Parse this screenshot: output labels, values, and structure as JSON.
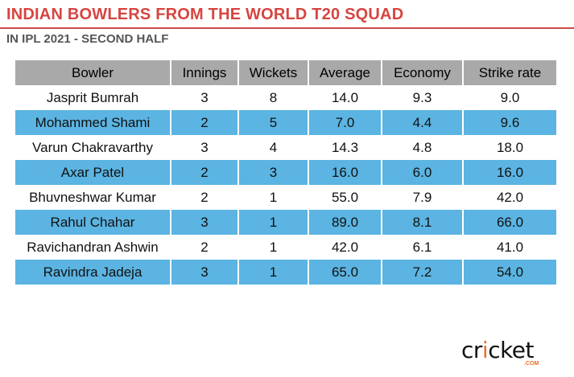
{
  "header": {
    "title": "INDIAN BOWLERS FROM THE WORLD T20 SQUAD",
    "subtitle": "IN IPL 2021 - SECOND HALF"
  },
  "table": {
    "columns": [
      "Bowler",
      "Innings",
      "Wickets",
      "Average",
      "Economy",
      "Strike rate"
    ],
    "rows": [
      [
        "Jasprit Bumrah",
        "3",
        "8",
        "14.0",
        "9.3",
        "9.0"
      ],
      [
        "Mohammed Shami",
        "2",
        "5",
        "7.0",
        "4.4",
        "9.6"
      ],
      [
        "Varun Chakravarthy",
        "3",
        "4",
        "14.3",
        "4.8",
        "18.0"
      ],
      [
        "Axar Patel",
        "2",
        "3",
        "16.0",
        "6.0",
        "16.0"
      ],
      [
        "Bhuvneshwar Kumar",
        "2",
        "1",
        "55.0",
        "7.9",
        "42.0"
      ],
      [
        "Rahul Chahar",
        "3",
        "1",
        "89.0",
        "8.1",
        "66.0"
      ],
      [
        "Ravichandran Ashwin",
        "2",
        "1",
        "42.0",
        "6.1",
        "41.0"
      ],
      [
        "Ravindra Jadeja",
        "3",
        "1",
        "65.0",
        "7.2",
        "54.0"
      ]
    ]
  },
  "logo": {
    "text_a": "cr",
    "text_dot": "i",
    "text_b": "cket",
    "suffix": ".COM"
  },
  "colors": {
    "title": "#d64541",
    "header_bg": "#a9a9a9",
    "alt_row": "#5bb4e2"
  }
}
